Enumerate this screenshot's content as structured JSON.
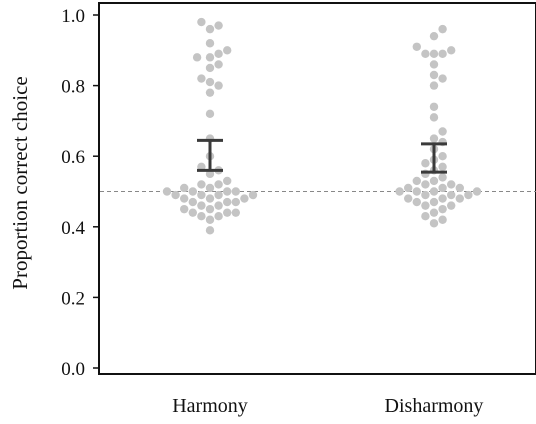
{
  "chart_data": {
    "type": "scatter",
    "subtype": "beeswarm",
    "title": "",
    "xlabel": "",
    "ylabel": "Proportion correct choice",
    "categories": [
      "Harmony",
      "Disharmony"
    ],
    "ylim": [
      0.0,
      1.0
    ],
    "yticks": [
      "0.0",
      "0.2",
      "0.4",
      "0.6",
      "0.8",
      "1.0"
    ],
    "grid": false,
    "legend": "none",
    "reference_line": {
      "y": 0.5,
      "style": "dashed"
    },
    "colors": {
      "points": "#c4c4c4",
      "error_bars": "#3a3a3a",
      "reference_line": "#888888",
      "axis": "#111111"
    },
    "series": [
      {
        "category": "Harmony",
        "values": [
          0.98,
          0.97,
          0.96,
          0.92,
          0.9,
          0.89,
          0.88,
          0.88,
          0.86,
          0.85,
          0.82,
          0.81,
          0.8,
          0.78,
          0.72,
          0.65,
          0.6,
          0.57,
          0.56,
          0.55,
          0.53,
          0.52,
          0.52,
          0.51,
          0.51,
          0.5,
          0.5,
          0.5,
          0.5,
          0.49,
          0.49,
          0.49,
          0.49,
          0.48,
          0.48,
          0.48,
          0.47,
          0.47,
          0.47,
          0.46,
          0.46,
          0.45,
          0.45,
          0.44,
          0.44,
          0.44,
          0.43,
          0.43,
          0.42,
          0.39
        ],
        "error_bar": {
          "low": 0.56,
          "high": 0.645
        }
      },
      {
        "category": "Disharmony",
        "values": [
          0.96,
          0.94,
          0.91,
          0.9,
          0.89,
          0.89,
          0.89,
          0.86,
          0.83,
          0.82,
          0.8,
          0.74,
          0.71,
          0.67,
          0.65,
          0.64,
          0.62,
          0.6,
          0.59,
          0.58,
          0.57,
          0.56,
          0.55,
          0.54,
          0.53,
          0.53,
          0.52,
          0.52,
          0.51,
          0.51,
          0.51,
          0.5,
          0.5,
          0.5,
          0.5,
          0.49,
          0.49,
          0.49,
          0.48,
          0.48,
          0.48,
          0.47,
          0.47,
          0.46,
          0.46,
          0.45,
          0.44,
          0.43,
          0.42,
          0.41
        ],
        "error_bar": {
          "low": 0.555,
          "high": 0.635
        }
      }
    ]
  }
}
